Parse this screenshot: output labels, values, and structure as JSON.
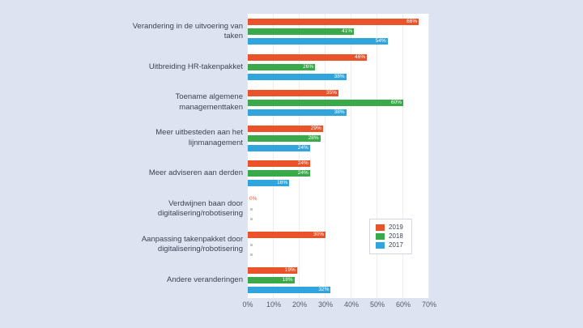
{
  "chart_data": {
    "type": "bar",
    "orientation": "horizontal",
    "title": "",
    "xlabel": "",
    "ylabel": "",
    "xlim": [
      0,
      70
    ],
    "x_ticks": [
      "0%",
      "10%",
      "20%",
      "30%",
      "40%",
      "50%",
      "60%",
      "70%"
    ],
    "grid": "vertical",
    "legend_position": "right-middle",
    "value_labels": "inside-bar-end, white, percent format; zero values shown as colored text outside bar; missing values shown as tiny grey marker",
    "categories": [
      "Verandering in de uitvoering van taken",
      "Uitbreiding HR-takenpakket",
      "Toename algemene managementtaken",
      "Meer uitbesteden aan het lijnmanagement",
      "Meer adviseren aan derden",
      "Verdwijnen baan door digitalisering/robotisering",
      "Aanpassing takenpakket door digitalisering/robotisering",
      "Andere veranderingen"
    ],
    "series": [
      {
        "name": "2019",
        "color": "#ea5329",
        "values": [
          66,
          46,
          35,
          29,
          24,
          0,
          30,
          19
        ]
      },
      {
        "name": "2018",
        "color": "#3aa94a",
        "values": [
          41,
          26,
          60,
          28,
          24,
          null,
          null,
          18
        ]
      },
      {
        "name": "2017",
        "color": "#30a5dd",
        "values": [
          54,
          38,
          38,
          24,
          16,
          null,
          null,
          32
        ]
      }
    ]
  },
  "legend": {
    "items": [
      {
        "label": "2019",
        "color": "#ea5329"
      },
      {
        "label": "2018",
        "color": "#3aa94a"
      },
      {
        "label": "2017",
        "color": "#30a5dd"
      }
    ]
  },
  "colors": {
    "page_background": "#dee3f1",
    "plot_background": "#ffffff",
    "gridline": "#e7edf0",
    "category_label_text": "#3d4354",
    "axis_label_text": "#565b68",
    "bar_value_text": "#ffffff",
    "no_data_marker": "#c4c8d4",
    "legend_border": "#d5d8e2"
  }
}
